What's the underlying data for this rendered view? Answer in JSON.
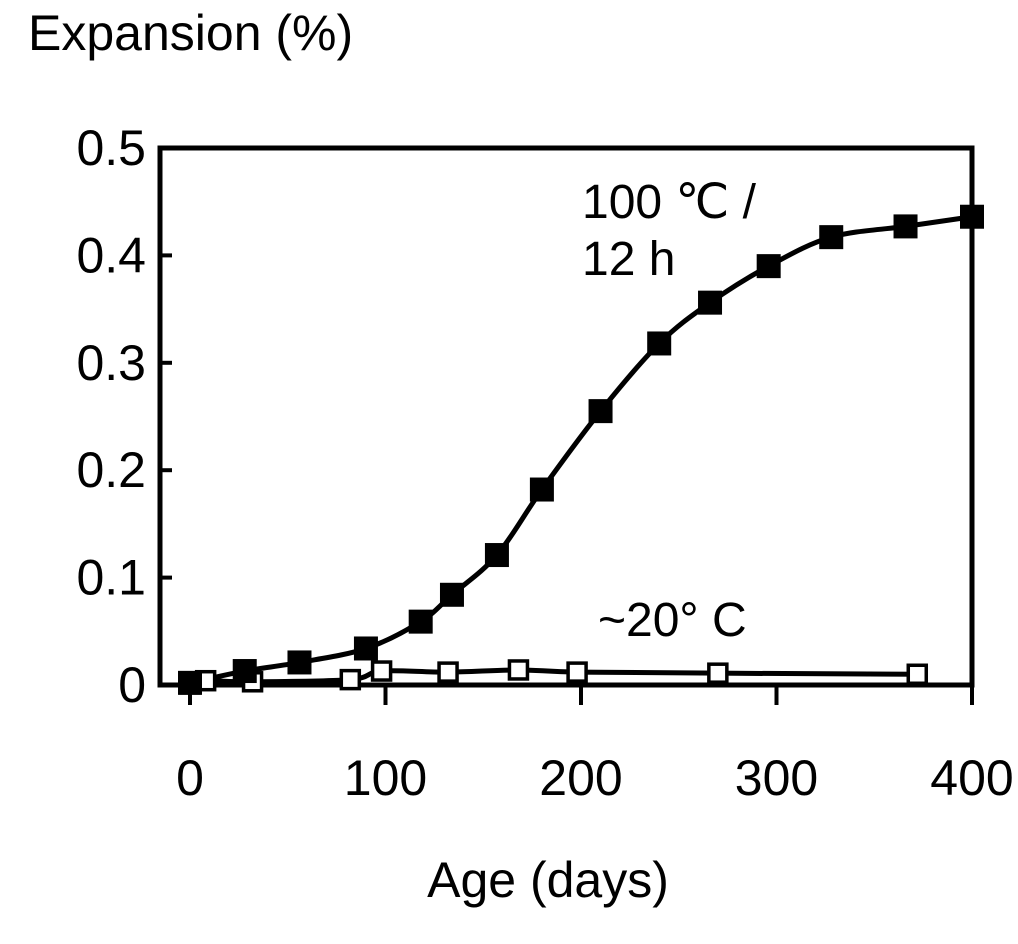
{
  "chart_data": {
    "type": "line",
    "title": "",
    "ylabel": "Expansion (%)",
    "xlabel": "Age (days)",
    "xlim": [
      0,
      400
    ],
    "ylim": [
      0,
      0.5
    ],
    "x_ticks": [
      "0",
      "100",
      "200",
      "300",
      "400"
    ],
    "y_ticks": [
      "0",
      "0.1",
      "0.2",
      "0.3",
      "0.4",
      "0.5"
    ],
    "grid": false,
    "legend": "none",
    "annotations": [
      {
        "line1": "100 ℃ /",
        "line2": "12 h",
        "series": 0
      },
      {
        "text": "~20° C",
        "series": 1
      }
    ],
    "series": [
      {
        "marker": "filled-square",
        "color": "#000000",
        "x": [
          0,
          28,
          56,
          90,
          118,
          134,
          157,
          180,
          210,
          240,
          266,
          296,
          328,
          366,
          400
        ],
        "y": [
          0.002,
          0.013,
          0.021,
          0.034,
          0.059,
          0.084,
          0.121,
          0.182,
          0.255,
          0.318,
          0.356,
          0.39,
          0.417,
          0.427,
          0.436
        ]
      },
      {
        "marker": "open-square",
        "color": "#000000",
        "x": [
          0,
          8,
          32,
          82,
          98,
          132,
          168,
          198,
          270,
          372
        ],
        "y": [
          0.001,
          0.004,
          0.003,
          0.005,
          0.013,
          0.012,
          0.014,
          0.012,
          0.011,
          0.01
        ]
      }
    ]
  }
}
